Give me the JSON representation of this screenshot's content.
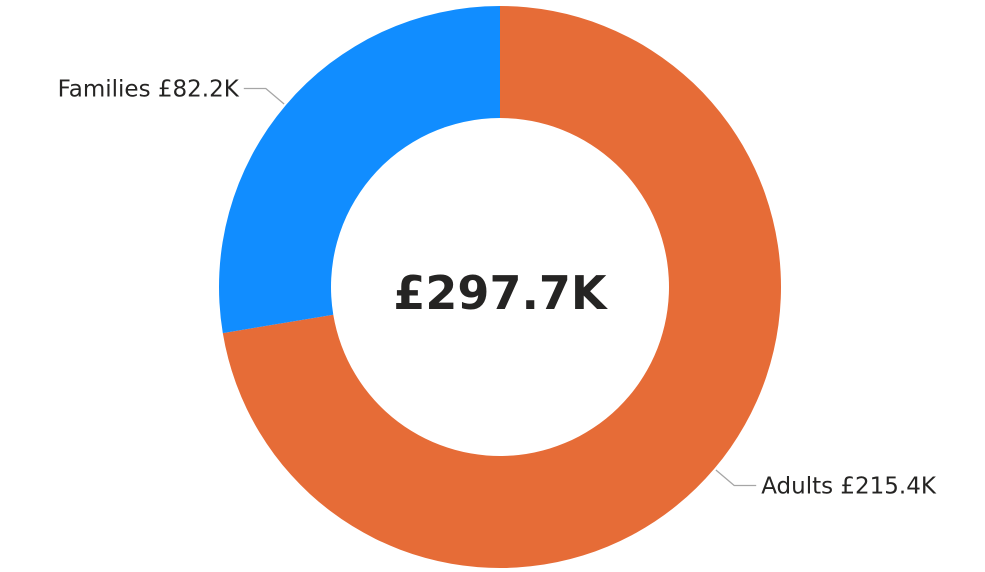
{
  "chart_data": {
    "type": "pie",
    "donut": true,
    "center_label": "£297.7K",
    "slices": [
      {
        "name": "Adults",
        "value": 215.4,
        "value_label": "£215.4K",
        "color": "#E66C37"
      },
      {
        "name": "Families",
        "value": 82.2,
        "value_label": "£82.2K",
        "color": "#118DFF"
      }
    ],
    "legend": "none",
    "data_labels": "outside"
  }
}
